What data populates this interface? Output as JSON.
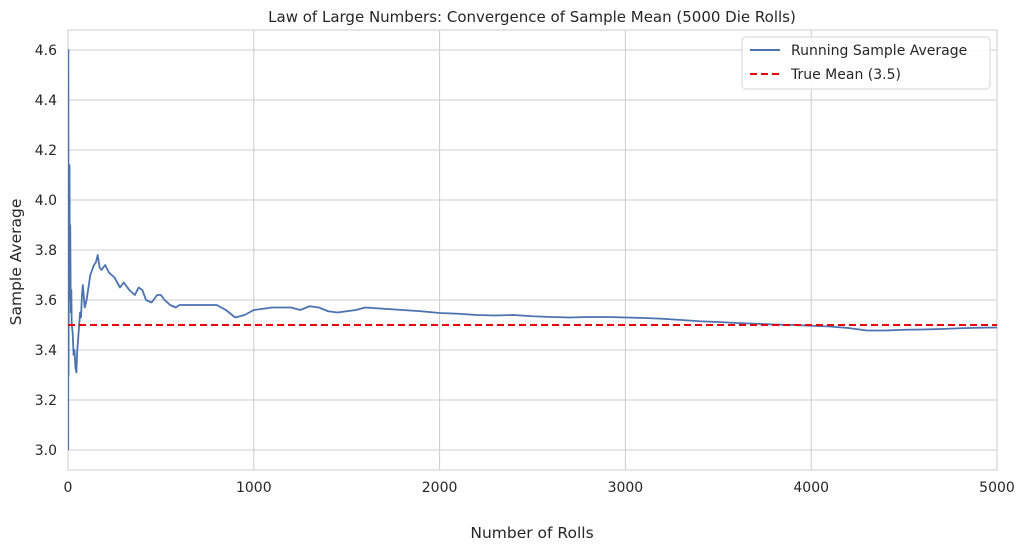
{
  "chart_data": {
    "type": "line",
    "title": "Law of Large Numbers: Convergence of Sample Mean (5000 Die Rolls)",
    "xlabel": "Number of Rolls",
    "ylabel": "Sample Average",
    "xlim": [
      0,
      5000
    ],
    "ylim": [
      2.92,
      4.68
    ],
    "xticks": [
      0,
      1000,
      2000,
      3000,
      4000,
      5000
    ],
    "xtick_labels": [
      "0",
      "1000",
      "2000",
      "3000",
      "4000",
      "5000"
    ],
    "yticks": [
      3.0,
      3.2,
      3.4,
      3.6,
      3.8,
      4.0,
      4.2,
      4.4,
      4.6
    ],
    "ytick_labels": [
      "3.0",
      "3.2",
      "3.4",
      "3.6",
      "3.8",
      "4.0",
      "4.2",
      "4.4",
      "4.6"
    ],
    "grid": true,
    "legend_position": "top-right",
    "series": [
      {
        "name": "Running Sample Average",
        "color": "#4c72b0",
        "style": "solid",
        "x": [
          1,
          2,
          3,
          5,
          8,
          10,
          12,
          15,
          18,
          20,
          25,
          30,
          35,
          40,
          45,
          50,
          55,
          60,
          65,
          70,
          75,
          80,
          90,
          100,
          110,
          120,
          130,
          140,
          150,
          160,
          170,
          180,
          200,
          220,
          250,
          280,
          300,
          330,
          360,
          380,
          400,
          420,
          450,
          480,
          500,
          520,
          550,
          580,
          600,
          650,
          700,
          750,
          800,
          850,
          900,
          950,
          1000,
          1100,
          1200,
          1250,
          1300,
          1350,
          1400,
          1450,
          1500,
          1550,
          1600,
          1700,
          1800,
          1900,
          2000,
          2100,
          2200,
          2300,
          2400,
          2500,
          2600,
          2700,
          2800,
          2900,
          3000,
          3100,
          3200,
          3300,
          3400,
          3500,
          3550,
          3600,
          3700,
          3800,
          3900,
          4000,
          4100,
          4200,
          4300,
          4400,
          4500,
          4600,
          4700,
          4800,
          4900,
          5000
        ],
        "y": [
          3.0,
          4.6,
          3.3,
          4.1,
          4.14,
          3.6,
          3.9,
          3.55,
          3.64,
          3.5,
          3.47,
          3.38,
          3.4,
          3.33,
          3.31,
          3.4,
          3.45,
          3.5,
          3.55,
          3.53,
          3.62,
          3.66,
          3.57,
          3.6,
          3.65,
          3.7,
          3.72,
          3.74,
          3.75,
          3.78,
          3.73,
          3.72,
          3.74,
          3.71,
          3.69,
          3.65,
          3.67,
          3.64,
          3.62,
          3.65,
          3.64,
          3.6,
          3.59,
          3.62,
          3.62,
          3.6,
          3.58,
          3.57,
          3.58,
          3.58,
          3.58,
          3.58,
          3.58,
          3.56,
          3.53,
          3.54,
          3.56,
          3.57,
          3.57,
          3.56,
          3.575,
          3.57,
          3.555,
          3.55,
          3.555,
          3.56,
          3.57,
          3.565,
          3.56,
          3.555,
          3.548,
          3.545,
          3.54,
          3.538,
          3.54,
          3.535,
          3.532,
          3.53,
          3.532,
          3.532,
          3.53,
          3.528,
          3.525,
          3.52,
          3.515,
          3.512,
          3.51,
          3.508,
          3.505,
          3.502,
          3.5,
          3.497,
          3.494,
          3.488,
          3.478,
          3.478,
          3.481,
          3.482,
          3.484,
          3.487,
          3.489,
          3.49
        ]
      },
      {
        "name": "True Mean (3.5)",
        "color": "#e8000b",
        "style": "dashed",
        "x": [
          0,
          5000
        ],
        "y": [
          3.5,
          3.5
        ]
      }
    ]
  }
}
